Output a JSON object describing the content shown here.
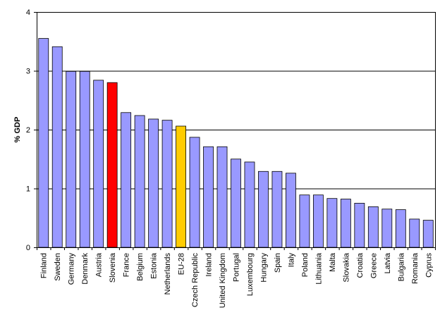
{
  "chart_data": {
    "type": "bar",
    "title": "",
    "xlabel": "",
    "ylabel": "% GDP",
    "ylim": [
      0,
      4
    ],
    "yticks": [
      0,
      1,
      2,
      3,
      4
    ],
    "grid": true,
    "legend": "none",
    "categories": [
      "Finland",
      "Sweden",
      "Germany",
      "Denmark",
      "Austria",
      "Slovenia",
      "France",
      "Belgium",
      "Estonia",
      "Netherlands",
      "EU-28",
      "Czech Republic",
      "Ireland",
      "United Kingdom",
      "Portugal",
      "Luxembourg",
      "Hungary",
      "Spain",
      "Italy",
      "Poland",
      "Lithuania",
      "Malta",
      "Slovakia",
      "Croatia",
      "Greece",
      "Latvia",
      "Bulgaria",
      "Romania",
      "Cyprus"
    ],
    "values": [
      3.55,
      3.41,
      2.99,
      2.99,
      2.84,
      2.8,
      2.29,
      2.24,
      2.18,
      2.16,
      2.06,
      1.87,
      1.71,
      1.71,
      1.5,
      1.45,
      1.29,
      1.29,
      1.26,
      0.89,
      0.89,
      0.83,
      0.82,
      0.75,
      0.69,
      0.65,
      0.64,
      0.48,
      0.46
    ],
    "colors": {
      "default": "#9999ff",
      "highlight": "#ff0000",
      "average": "#ffcc00",
      "gridline": "#000000",
      "border": "#000000"
    },
    "highlight_category": "Slovenia",
    "average_category": "EU-28"
  }
}
